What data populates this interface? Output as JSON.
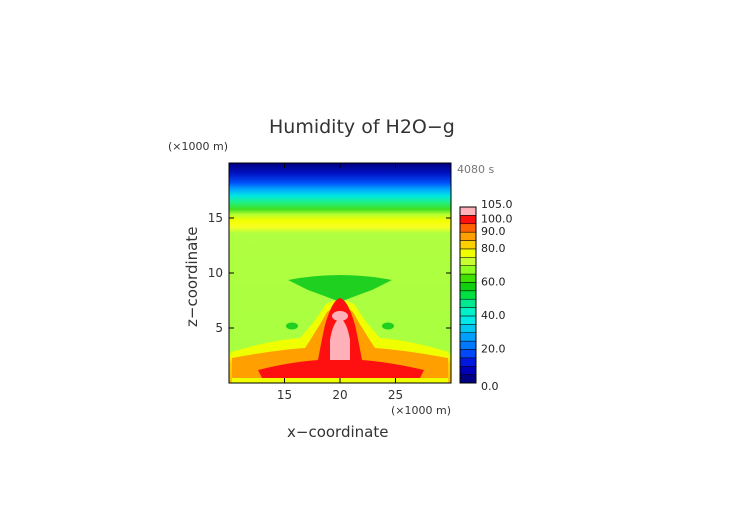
{
  "chart_data": {
    "type": "heatmap",
    "title": "Humidity of H2O−g",
    "time_label": "4080 s",
    "xlabel": "x−coordinate",
    "ylabel": "z−coordinate",
    "x_unit": "(×1000 m)",
    "y_unit": "(×1000 m)",
    "xlim": [
      10,
      30
    ],
    "ylim": [
      0,
      20
    ],
    "x_ticks": [
      "15",
      "20",
      "25"
    ],
    "y_ticks": [
      "5",
      "10",
      "15"
    ],
    "x_tick_values": [
      15,
      20,
      25
    ],
    "y_tick_values": [
      5,
      10,
      15
    ],
    "colorbar": {
      "min": 0,
      "max": 105,
      "tick_labels": [
        "0.0",
        "20.0",
        "40.0",
        "60.0",
        "80.0",
        "90.0",
        "100.0",
        "105.0"
      ],
      "tick_values": [
        0,
        20,
        40,
        60,
        80,
        90,
        100,
        105
      ],
      "levels": [
        {
          "from": 0,
          "to": 5,
          "color": "#000080"
        },
        {
          "from": 5,
          "to": 10,
          "color": "#0000b8"
        },
        {
          "from": 10,
          "to": 15,
          "color": "#0018e0"
        },
        {
          "from": 15,
          "to": 20,
          "color": "#0048f8"
        },
        {
          "from": 20,
          "to": 25,
          "color": "#0078ff"
        },
        {
          "from": 25,
          "to": 30,
          "color": "#00a0ff"
        },
        {
          "from": 30,
          "to": 35,
          "color": "#00c8f0"
        },
        {
          "from": 35,
          "to": 40,
          "color": "#00e8e8"
        },
        {
          "from": 40,
          "to": 45,
          "color": "#00f0c8"
        },
        {
          "from": 45,
          "to": 50,
          "color": "#00e890"
        },
        {
          "from": 50,
          "to": 55,
          "color": "#00e040"
        },
        {
          "from": 55,
          "to": 60,
          "color": "#10d010"
        },
        {
          "from": 60,
          "to": 65,
          "color": "#40e000"
        },
        {
          "from": 65,
          "to": 70,
          "color": "#90ff20"
        },
        {
          "from": 70,
          "to": 75,
          "color": "#c8ff30"
        },
        {
          "from": 75,
          "to": 80,
          "color": "#f0ff00"
        },
        {
          "from": 80,
          "to": 85,
          "color": "#ffd000"
        },
        {
          "from": 85,
          "to": 90,
          "color": "#ffa000"
        },
        {
          "from": 90,
          "to": 95,
          "color": "#ff6000"
        },
        {
          "from": 95,
          "to": 100,
          "color": "#ff1010"
        },
        {
          "from": 100,
          "to": 105,
          "color": "#e00000"
        }
      ],
      "overflow_color": "#ffb0b8"
    },
    "field_regions": [
      {
        "x_range": [
          10,
          30
        ],
        "z_range": [
          18.5,
          20
        ],
        "value": 5
      },
      {
        "x_range": [
          10,
          30
        ],
        "z_range": [
          17.5,
          18.5
        ],
        "value": 15
      },
      {
        "x_range": [
          10,
          30
        ],
        "z_range": [
          16.5,
          17.5
        ],
        "value": 30
      },
      {
        "x_range": [
          10,
          30
        ],
        "z_range": [
          15.8,
          16.5
        ],
        "value": 48
      },
      {
        "x_range": [
          10,
          30
        ],
        "z_range": [
          14.5,
          15.8
        ],
        "value": 62
      },
      {
        "x_range": [
          10,
          30
        ],
        "z_range": [
          13.5,
          14.5
        ],
        "value": 78
      },
      {
        "x_range": [
          10,
          30
        ],
        "z_range": [
          2.5,
          13.5
        ],
        "value": 68
      },
      {
        "x_range": [
          10,
          30
        ],
        "z_range": [
          0,
          2.5
        ],
        "value": 82
      }
    ],
    "features": [
      {
        "label": "upper anvil",
        "x_center": 20,
        "z_center": 9.2,
        "value": 58
      },
      {
        "label": "core",
        "x_center": 20,
        "z_center": 4,
        "value": 100
      },
      {
        "label": "core max",
        "x_center": 20,
        "z_center": 4.5,
        "value": 105
      }
    ]
  }
}
